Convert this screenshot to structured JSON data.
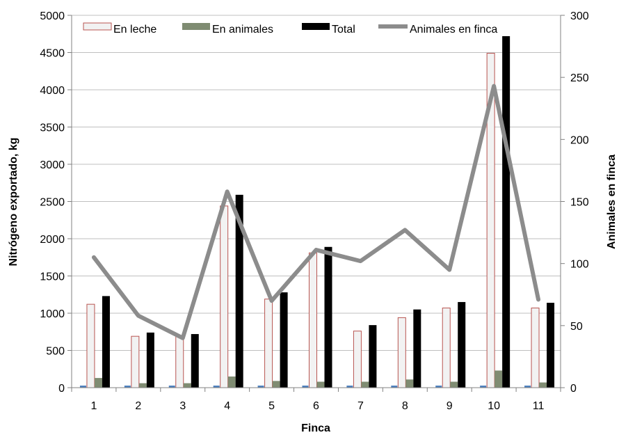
{
  "chart_data": {
    "type": "bar",
    "title": "",
    "xlabel": "Finca",
    "ylabel": "Nitrógeno exportado, kg",
    "y2label": "Animales en finca",
    "categories": [
      "1",
      "2",
      "3",
      "4",
      "5",
      "6",
      "7",
      "8",
      "9",
      "10",
      "11"
    ],
    "ylim": [
      0,
      5000
    ],
    "y2lim": [
      0,
      300
    ],
    "yticks": [
      "0",
      "500",
      "1000",
      "1500",
      "2000",
      "2500",
      "3000",
      "3500",
      "4000",
      "4500",
      "5000"
    ],
    "y2ticks": [
      "0",
      "50",
      "100",
      "150",
      "200",
      "250",
      "300"
    ],
    "series": [
      {
        "name": "En leche",
        "kind": "bar",
        "axis": "left",
        "values": [
          1120,
          690,
          700,
          2440,
          1190,
          1810,
          760,
          940,
          1070,
          4490,
          1070
        ]
      },
      {
        "name": "En animales",
        "kind": "bar",
        "axis": "left",
        "values": [
          130,
          60,
          60,
          150,
          90,
          80,
          80,
          110,
          80,
          230,
          70
        ]
      },
      {
        "name": "Total",
        "kind": "bar",
        "axis": "left",
        "values": [
          1230,
          740,
          720,
          2590,
          1280,
          1890,
          840,
          1050,
          1150,
          4720,
          1140
        ]
      },
      {
        "name": "Animales en finca",
        "kind": "line",
        "axis": "right",
        "values": [
          105,
          58,
          40,
          158,
          70,
          111,
          102,
          127,
          95,
          243,
          71
        ]
      }
    ],
    "colors": {
      "leche_fill": "#f2f2f2",
      "leche_stroke": "#b85450",
      "animales": "#7f8c72",
      "total": "#000000",
      "line": "#8c8c8c",
      "grid": "#bfbfbf",
      "small_bar": "#4f81bd"
    },
    "grid": true,
    "legend_position": "top"
  }
}
